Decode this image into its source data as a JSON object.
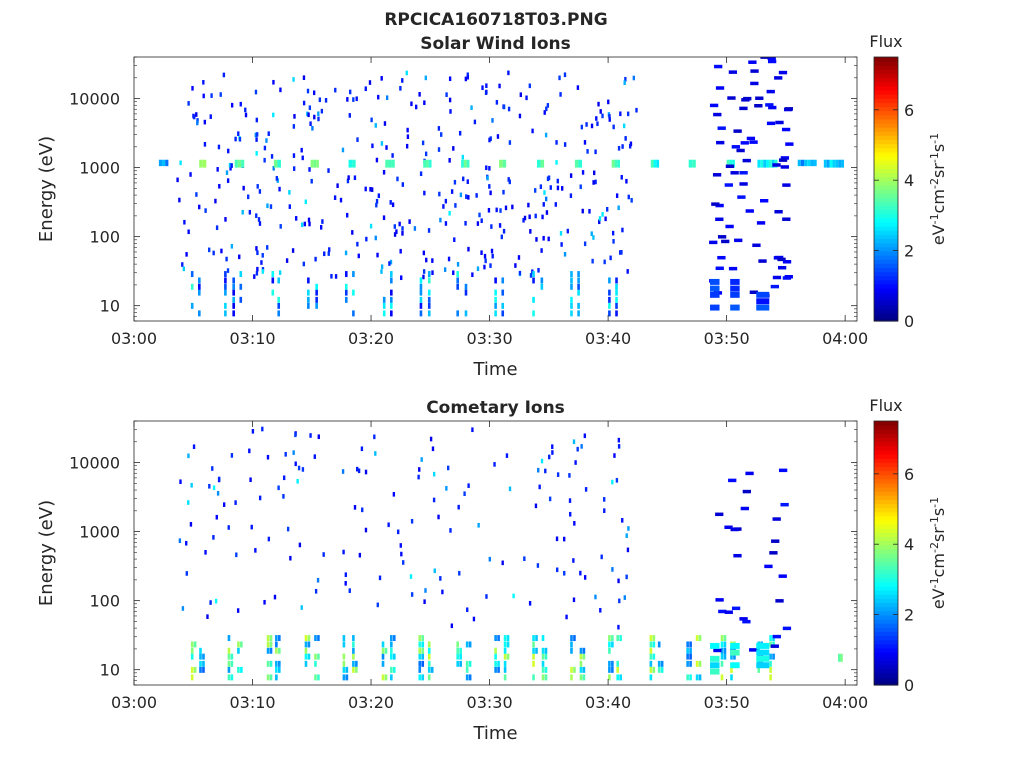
{
  "figure_title": "RPCICA160718T03.PNG",
  "chart_data": [
    {
      "type": "heatmap",
      "title": "Solar Wind Ions",
      "xlabel": "Time",
      "ylabel": "Energy (eV)",
      "x_tick_labels": [
        "03:00",
        "03:10",
        "03:20",
        "03:30",
        "03:40",
        "03:50",
        "04:00"
      ],
      "x_ticks_min": [
        0,
        10,
        20,
        30,
        40,
        50,
        60
      ],
      "xlim_min": [
        0,
        61
      ],
      "y_scale": "log",
      "y_tick_labels": [
        "10",
        "100",
        "1000",
        "10000"
      ],
      "y_ticks": [
        10,
        100,
        1000,
        10000
      ],
      "ylim": [
        6,
        40000
      ],
      "colorbar": {
        "label_top": "Flux",
        "unit": "eV-1cm-2sr-1s-1",
        "ticks": [
          0,
          2,
          4,
          6
        ],
        "range": [
          0,
          7.5
        ]
      },
      "bands": [
        {
          "t": [
            2.1,
            2.9
          ],
          "e": [
            1050,
            1300
          ],
          "v": 2.0
        },
        {
          "t": [
            5.5,
            6.1
          ],
          "e": [
            1000,
            1300
          ],
          "v": 3.8
        },
        {
          "t": [
            8.5,
            9.3
          ],
          "e": [
            1000,
            1300
          ],
          "v": 3.3
        },
        {
          "t": [
            11.8,
            12.4
          ],
          "e": [
            1000,
            1300
          ],
          "v": 3.3
        },
        {
          "t": [
            14.9,
            15.6
          ],
          "e": [
            1000,
            1300
          ],
          "v": 3.4
        },
        {
          "t": [
            18.1,
            18.7
          ],
          "e": [
            1000,
            1300
          ],
          "v": 3.3
        },
        {
          "t": [
            21.2,
            22.0
          ],
          "e": [
            1000,
            1300
          ],
          "v": 3.4
        },
        {
          "t": [
            24.4,
            25.1
          ],
          "e": [
            1000,
            1300
          ],
          "v": 3.3
        },
        {
          "t": [
            27.6,
            28.3
          ],
          "e": [
            1000,
            1300
          ],
          "v": 3.4
        },
        {
          "t": [
            30.8,
            31.4
          ],
          "e": [
            1000,
            1300
          ],
          "v": 3.4
        },
        {
          "t": [
            34.0,
            34.6
          ],
          "e": [
            1000,
            1300
          ],
          "v": 3.4
        },
        {
          "t": [
            37.2,
            37.8
          ],
          "e": [
            1000,
            1300
          ],
          "v": 3.3
        },
        {
          "t": [
            40.3,
            41.0
          ],
          "e": [
            1000,
            1300
          ],
          "v": 3.3
        },
        {
          "t": [
            43.6,
            44.3
          ],
          "e": [
            1000,
            1300
          ],
          "v": 3.0
        },
        {
          "t": [
            46.8,
            47.4
          ],
          "e": [
            1000,
            1300
          ],
          "v": 3.0
        },
        {
          "t": [
            50.0,
            50.7
          ],
          "e": [
            1000,
            1300
          ],
          "v": 3.3
        },
        {
          "t": [
            52.6,
            54.3
          ],
          "e": [
            1000,
            1300
          ],
          "v": 2.8
        },
        {
          "t": [
            56.0,
            57.6
          ],
          "e": [
            1050,
            1300
          ],
          "v": 2.2
        },
        {
          "t": [
            58.2,
            59.9
          ],
          "e": [
            1000,
            1300
          ],
          "v": 2.5
        }
      ],
      "low_energy_bursts": [
        4.8,
        5.4,
        7.6,
        8.3,
        8.9,
        11.6,
        12.1,
        14.6,
        15.3,
        17.8,
        18.4,
        21.0,
        21.6,
        24.1,
        24.8,
        27.2,
        27.9,
        30.4,
        31.0,
        33.6,
        34.3,
        36.8,
        37.4,
        40.0,
        40.6
      ],
      "late_structure": {
        "t": [
          48.5,
          55.0
        ],
        "e": [
          14,
          40000
        ],
        "v": 0.5
      }
    },
    {
      "type": "heatmap",
      "title": "Cometary Ions",
      "xlabel": "Time",
      "ylabel": "Energy (eV)",
      "x_tick_labels": [
        "03:00",
        "03:10",
        "03:20",
        "03:30",
        "03:40",
        "03:50",
        "04:00"
      ],
      "x_ticks_min": [
        0,
        10,
        20,
        30,
        40,
        50,
        60
      ],
      "xlim_min": [
        0,
        61
      ],
      "y_scale": "log",
      "y_tick_labels": [
        "10",
        "100",
        "1000",
        "10000"
      ],
      "y_ticks": [
        10,
        100,
        1000,
        10000
      ],
      "ylim": [
        6,
        40000
      ],
      "colorbar": {
        "label_top": "Flux",
        "unit": "eV-1cm-2sr-1s-1",
        "ticks": [
          0,
          2,
          4,
          6
        ],
        "range": [
          0,
          7.5
        ]
      },
      "bands": [
        {
          "t": [
            59.4,
            59.8
          ],
          "e": [
            13,
            17
          ],
          "v": 3.5
        }
      ],
      "low_energy_bursts": [
        4.8,
        5.5,
        7.9,
        8.7,
        11.2,
        11.9,
        14.4,
        15.2,
        17.6,
        18.4,
        20.9,
        21.6,
        24.0,
        24.8,
        27.2,
        28.0,
        30.4,
        31.2,
        33.6,
        34.4,
        36.8,
        37.6,
        40.0,
        40.7,
        43.5,
        44.2,
        46.6,
        47.4,
        49.5,
        50.3,
        52.6,
        53.6
      ],
      "late_structure": {
        "t": [
          48.5,
          55.0
        ],
        "e": [
          14,
          8000
        ],
        "v": 0.5
      }
    }
  ]
}
